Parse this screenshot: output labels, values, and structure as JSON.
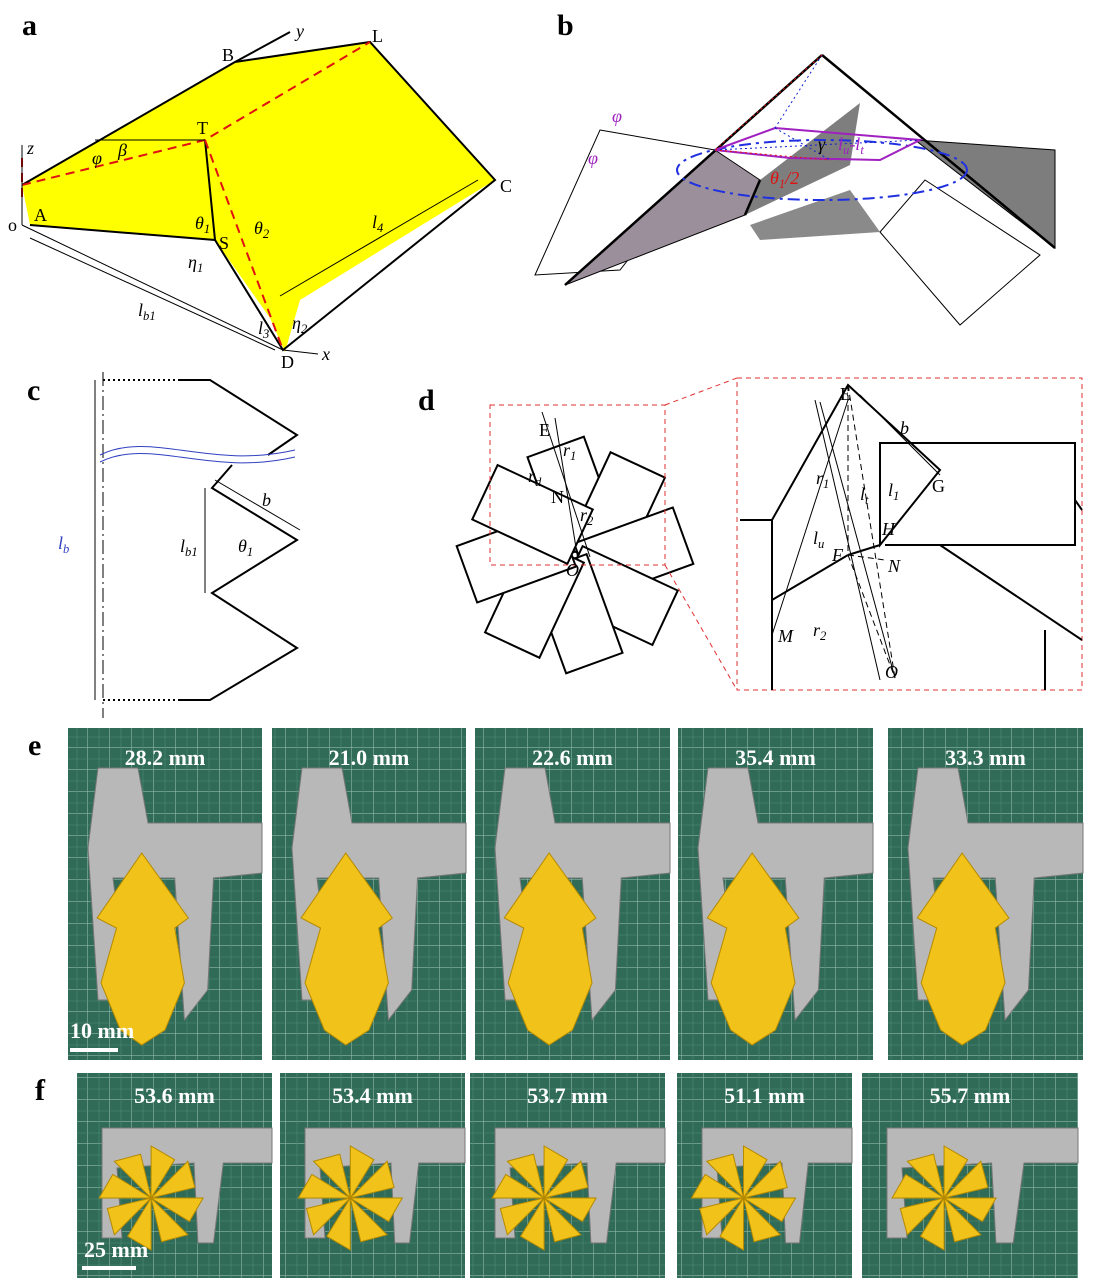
{
  "panel_labels": [
    "a",
    "b",
    "c",
    "d",
    "e",
    "f"
  ],
  "a": [
    "B",
    "y",
    "L",
    "z",
    "T",
    "φ",
    "β",
    "C",
    "A",
    "o",
    [
      "θ",
      "1"
    ],
    "S",
    [
      "θ",
      "2"
    ],
    [
      "l",
      "4"
    ],
    [
      "η",
      "1"
    ],
    [
      "l",
      "b1"
    ],
    [
      "η",
      "2"
    ],
    [
      "l",
      "3"
    ],
    "D",
    "x"
  ],
  "b": [
    "φ",
    "φ",
    "γ",
    [
      "l",
      "u",
      "-l",
      "t"
    ],
    [
      "θ",
      "1",
      "/2"
    ]
  ],
  "c": [
    [
      "l",
      "b"
    ],
    "b",
    [
      "l",
      "b1"
    ],
    [
      "θ",
      "1"
    ]
  ],
  "d": [
    "E",
    [
      "r",
      "1"
    ],
    [
      "r",
      "d"
    ],
    "N",
    [
      "r",
      "2"
    ],
    "O",
    "E",
    "b",
    "G",
    [
      "r",
      "1"
    ],
    [
      "l",
      "t"
    ],
    [
      "l",
      "1"
    ],
    [
      "l",
      "u"
    ],
    "H",
    "F",
    "N",
    [
      "r",
      "2"
    ],
    "M",
    "O"
  ],
  "e": {
    "captions": [
      "28.2 mm",
      "21.0 mm",
      "22.6 mm",
      "35.4 mm",
      "33.3 mm"
    ],
    "scale": "10 mm"
  },
  "f": {
    "captions": [
      "53.6 mm",
      "53.4 mm",
      "53.7 mm",
      "51.1 mm",
      "55.7 mm"
    ],
    "scale": "25 mm"
  }
}
